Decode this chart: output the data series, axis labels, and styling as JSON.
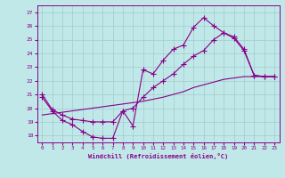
{
  "xlabel": "Windchill (Refroidissement éolien,°C)",
  "xlim": [
    -0.5,
    23.5
  ],
  "ylim": [
    17.5,
    27.5
  ],
  "yticks": [
    18,
    19,
    20,
    21,
    22,
    23,
    24,
    25,
    26,
    27
  ],
  "xticks": [
    0,
    1,
    2,
    3,
    4,
    5,
    6,
    7,
    8,
    9,
    10,
    11,
    12,
    13,
    14,
    15,
    16,
    17,
    18,
    19,
    20,
    21,
    22,
    23
  ],
  "bg_color": "#c0e8e8",
  "grid_color": "#a0cccc",
  "line_color": "#880088",
  "line1_x": [
    0,
    1,
    2,
    3,
    4,
    5,
    6,
    7,
    8,
    9,
    10,
    11,
    12,
    13,
    14,
    15,
    16,
    17,
    18,
    19,
    20,
    21,
    22,
    23
  ],
  "line1_y": [
    20.8,
    19.8,
    19.1,
    18.8,
    18.3,
    17.9,
    17.8,
    17.8,
    19.8,
    18.7,
    22.8,
    22.5,
    23.5,
    24.3,
    24.6,
    25.9,
    26.6,
    26.0,
    25.5,
    25.1,
    24.2,
    22.4,
    22.3,
    22.3
  ],
  "line2_x": [
    0,
    1,
    2,
    3,
    4,
    5,
    6,
    7,
    8,
    9,
    10,
    11,
    12,
    13,
    14,
    15,
    16,
    17,
    18,
    19,
    20,
    21,
    22,
    23
  ],
  "line2_y": [
    21.0,
    19.9,
    19.5,
    19.2,
    19.1,
    19.0,
    19.0,
    19.0,
    19.8,
    20.0,
    20.8,
    21.5,
    22.0,
    22.5,
    23.2,
    23.8,
    24.2,
    25.0,
    25.5,
    25.2,
    24.3,
    22.4,
    22.3,
    22.3
  ],
  "line3_x": [
    0,
    1,
    2,
    3,
    4,
    5,
    6,
    7,
    8,
    9,
    10,
    11,
    12,
    13,
    14,
    15,
    16,
    17,
    18,
    19,
    20,
    21,
    22,
    23
  ],
  "line3_y": [
    19.5,
    19.6,
    19.7,
    19.8,
    19.9,
    20.0,
    20.1,
    20.2,
    20.3,
    20.4,
    20.5,
    20.65,
    20.8,
    21.0,
    21.2,
    21.5,
    21.7,
    21.9,
    22.1,
    22.2,
    22.3,
    22.3,
    22.3,
    22.3
  ]
}
